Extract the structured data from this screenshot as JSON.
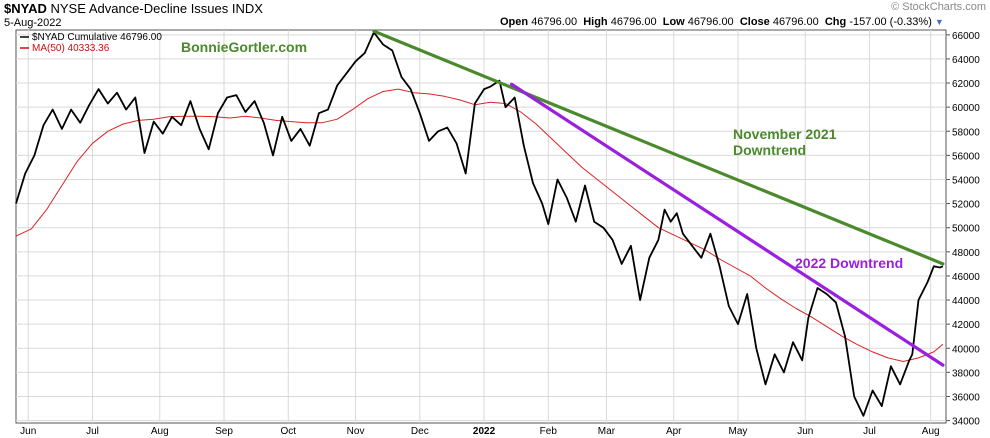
{
  "header": {
    "symbol": "$NYAD",
    "exchange": "NYSE",
    "name": "Advance-Decline Issues",
    "type": "INDX",
    "date": "5-Aug-2022",
    "watermark": "© StockCharts.com",
    "open_label": "Open",
    "open": "46796.00",
    "high_label": "High",
    "high": "46796.00",
    "low_label": "Low",
    "low": "46796.00",
    "close_label": "Close",
    "close": "46796.00",
    "chg_label": "Chg",
    "chg": "-157.00 (-0.33%)",
    "arrow_icon": "dropdown-arrow-icon"
  },
  "legend": [
    {
      "text": "$NYAD Cumulative 46796.00",
      "color": "#000000"
    },
    {
      "text": "MA(50) 40333.36",
      "color": "#cc1111"
    }
  ],
  "colors": {
    "price": "#000000",
    "ma": "#dd2222",
    "green": "#4a8a2c",
    "purple": "#9a1fe0",
    "grid": "#d9d9d9"
  },
  "annotations": {
    "site": "BonnieGortler.com",
    "nov_line1": "November 2021",
    "nov_line2": "Downtrend",
    "downtrend_2022": "2022 Downtrend"
  },
  "chart_data": {
    "type": "line",
    "title": "$NYAD NYSE - Advance-Decline Issues INDX",
    "ylim": [
      33800,
      66400
    ],
    "y_ticks": [
      34000,
      36000,
      38000,
      40000,
      42000,
      44000,
      46000,
      48000,
      50000,
      52000,
      54000,
      56000,
      58000,
      60000,
      62000,
      64000,
      66000
    ],
    "y_tick_labels": [
      "34000",
      "36000",
      "38000",
      "40000",
      "42000",
      "44000",
      "46000",
      "48000",
      "50000",
      "52000",
      "54000",
      "56000",
      "58000",
      "60000",
      "62000",
      "64000",
      "66000"
    ],
    "x_ticks": [
      {
        "label": "Jun",
        "bold": false,
        "t": 4
      },
      {
        "label": "Jul",
        "bold": false,
        "t": 25
      },
      {
        "label": "Aug",
        "bold": false,
        "t": 47
      },
      {
        "label": "Sep",
        "bold": false,
        "t": 68
      },
      {
        "label": "Oct",
        "bold": false,
        "t": 89
      },
      {
        "label": "Nov",
        "bold": false,
        "t": 111
      },
      {
        "label": "Dec",
        "bold": false,
        "t": 132
      },
      {
        "label": "2022",
        "bold": true,
        "t": 153
      },
      {
        "label": "Feb",
        "bold": false,
        "t": 174
      },
      {
        "label": "Mar",
        "bold": false,
        "t": 193
      },
      {
        "label": "Apr",
        "bold": false,
        "t": 215
      },
      {
        "label": "May",
        "bold": false,
        "t": 236
      },
      {
        "label": "Jun",
        "bold": false,
        "t": 258
      },
      {
        "label": "Jul",
        "bold": false,
        "t": 279
      },
      {
        "label": "Aug",
        "bold": false,
        "t": 299
      }
    ],
    "t_range": [
      0,
      304
    ],
    "series": [
      {
        "name": "$NYAD Cumulative",
        "color": "#000000",
        "points": [
          [
            0,
            52000
          ],
          [
            3,
            54500
          ],
          [
            6,
            56000
          ],
          [
            9,
            58500
          ],
          [
            12,
            59800
          ],
          [
            15,
            58200
          ],
          [
            18,
            59800
          ],
          [
            21,
            58700
          ],
          [
            24,
            60200
          ],
          [
            27,
            61500
          ],
          [
            30,
            60300
          ],
          [
            33,
            61200
          ],
          [
            36,
            59800
          ],
          [
            39,
            60800
          ],
          [
            42,
            56200
          ],
          [
            45,
            58800
          ],
          [
            48,
            57800
          ],
          [
            51,
            59200
          ],
          [
            54,
            58500
          ],
          [
            57,
            60500
          ],
          [
            60,
            58200
          ],
          [
            63,
            56500
          ],
          [
            66,
            59500
          ],
          [
            69,
            60800
          ],
          [
            72,
            61000
          ],
          [
            75,
            59600
          ],
          [
            78,
            60500
          ],
          [
            81,
            58700
          ],
          [
            84,
            56000
          ],
          [
            87,
            59200
          ],
          [
            90,
            57200
          ],
          [
            93,
            58200
          ],
          [
            96,
            56800
          ],
          [
            99,
            59500
          ],
          [
            102,
            59800
          ],
          [
            105,
            61800
          ],
          [
            108,
            62800
          ],
          [
            111,
            63800
          ],
          [
            114,
            64500
          ],
          [
            117,
            66200
          ],
          [
            120,
            65200
          ],
          [
            123,
            64700
          ],
          [
            126,
            62500
          ],
          [
            129,
            61500
          ],
          [
            132,
            59500
          ],
          [
            135,
            57200
          ],
          [
            138,
            58000
          ],
          [
            141,
            58300
          ],
          [
            144,
            57000
          ],
          [
            147,
            54500
          ],
          [
            150,
            60300
          ],
          [
            153,
            61500
          ],
          [
            155,
            61700
          ],
          [
            158,
            62200
          ],
          [
            160,
            60000
          ],
          [
            163,
            60800
          ],
          [
            166,
            56800
          ],
          [
            169,
            53700
          ],
          [
            172,
            52000
          ],
          [
            174,
            50300
          ],
          [
            177,
            54000
          ],
          [
            180,
            52500
          ],
          [
            183,
            50500
          ],
          [
            186,
            53500
          ],
          [
            189,
            50500
          ],
          [
            192,
            50000
          ],
          [
            195,
            49000
          ],
          [
            198,
            47000
          ],
          [
            201,
            48500
          ],
          [
            204,
            44000
          ],
          [
            207,
            47500
          ],
          [
            210,
            49000
          ],
          [
            212,
            51500
          ],
          [
            214,
            50500
          ],
          [
            216,
            51200
          ],
          [
            218,
            49500
          ],
          [
            221,
            48500
          ],
          [
            224,
            47500
          ],
          [
            227,
            49500
          ],
          [
            230,
            46800
          ],
          [
            233,
            43500
          ],
          [
            236,
            42000
          ],
          [
            239,
            44500
          ],
          [
            242,
            40000
          ],
          [
            245,
            37000
          ],
          [
            248,
            39500
          ],
          [
            251,
            38000
          ],
          [
            254,
            40500
          ],
          [
            257,
            39000
          ],
          [
            259,
            42500
          ],
          [
            262,
            45000
          ],
          [
            265,
            44500
          ],
          [
            268,
            43800
          ],
          [
            271,
            41000
          ],
          [
            274,
            36000
          ],
          [
            277,
            34400
          ],
          [
            280,
            36500
          ],
          [
            283,
            35200
          ],
          [
            286,
            38500
          ],
          [
            289,
            37000
          ],
          [
            292,
            39000
          ],
          [
            293,
            39500
          ],
          [
            295,
            44000
          ],
          [
            298,
            45500
          ],
          [
            300,
            46800
          ],
          [
            302,
            46700
          ],
          [
            303,
            46796
          ]
        ]
      },
      {
        "name": "MA(50)",
        "color": "#dd2222",
        "points": [
          [
            0,
            49300
          ],
          [
            5,
            49900
          ],
          [
            10,
            51500
          ],
          [
            15,
            53500
          ],
          [
            20,
            55500
          ],
          [
            25,
            57000
          ],
          [
            30,
            58000
          ],
          [
            35,
            58600
          ],
          [
            40,
            58900
          ],
          [
            45,
            59000
          ],
          [
            50,
            59200
          ],
          [
            55,
            59250
          ],
          [
            60,
            59250
          ],
          [
            65,
            59200
          ],
          [
            70,
            59100
          ],
          [
            75,
            59250
          ],
          [
            80,
            59100
          ],
          [
            85,
            58900
          ],
          [
            90,
            58800
          ],
          [
            95,
            58700
          ],
          [
            100,
            58700
          ],
          [
            105,
            59000
          ],
          [
            110,
            59800
          ],
          [
            115,
            60700
          ],
          [
            120,
            61300
          ],
          [
            125,
            61500
          ],
          [
            130,
            61200
          ],
          [
            135,
            61100
          ],
          [
            140,
            60900
          ],
          [
            145,
            60600
          ],
          [
            150,
            60200
          ],
          [
            155,
            60400
          ],
          [
            160,
            60300
          ],
          [
            165,
            59600
          ],
          [
            170,
            58600
          ],
          [
            175,
            57400
          ],
          [
            180,
            56200
          ],
          [
            185,
            55000
          ],
          [
            190,
            54000
          ],
          [
            195,
            53000
          ],
          [
            200,
            52000
          ],
          [
            205,
            51000
          ],
          [
            210,
            50000
          ],
          [
            215,
            49400
          ],
          [
            220,
            48800
          ],
          [
            225,
            48200
          ],
          [
            230,
            47400
          ],
          [
            235,
            46700
          ],
          [
            240,
            46000
          ],
          [
            245,
            45000
          ],
          [
            250,
            44100
          ],
          [
            255,
            43300
          ],
          [
            260,
            42600
          ],
          [
            265,
            41800
          ],
          [
            270,
            41000
          ],
          [
            275,
            40300
          ],
          [
            280,
            39700
          ],
          [
            285,
            39200
          ],
          [
            290,
            38900
          ],
          [
            295,
            39200
          ],
          [
            300,
            39700
          ],
          [
            303,
            40333
          ]
        ]
      }
    ],
    "trendlines": [
      {
        "label": "November 2021 Downtrend",
        "color": "#4a8a2c",
        "from": [
          117,
          66300
        ],
        "to": [
          303,
          47000
        ]
      },
      {
        "label": "2022 Downtrend",
        "color": "#9a1fe0",
        "from": [
          162,
          61900
        ],
        "to": [
          303,
          38600
        ]
      }
    ]
  }
}
